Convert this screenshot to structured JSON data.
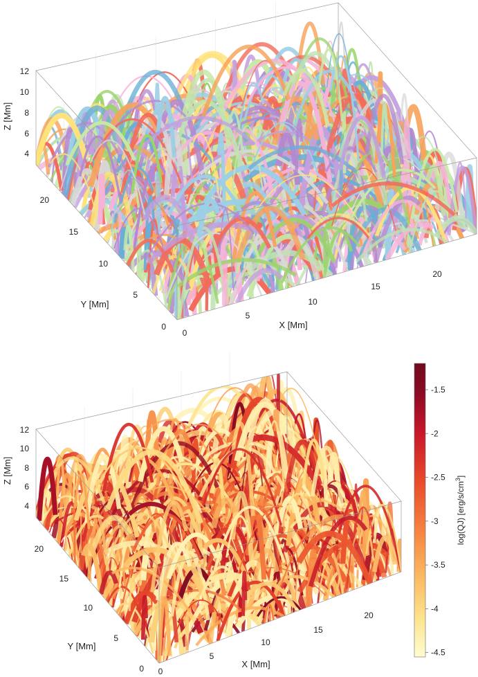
{
  "chart_data": [
    {
      "type": "scatter",
      "panel": "top",
      "description_hidden": false,
      "xlabel": "X [Mm]",
      "ylabel": "Y [Mm]",
      "zlabel": "Z [Mm]",
      "xticks": [
        "0",
        "5",
        "10",
        "15",
        "20"
      ],
      "yticks": [
        "0",
        "5",
        "10",
        "15",
        "20"
      ],
      "zticks": [
        "4",
        "6",
        "8",
        "10",
        "12"
      ],
      "xlim": [
        0,
        24
      ],
      "ylim": [
        0,
        24
      ],
      "zlim": [
        3,
        12
      ],
      "coloring": "categorical",
      "palette": [
        "#f26b5b",
        "#6aaed6",
        "#9bd36b",
        "#b389d0",
        "#f7b3d8",
        "#ffe27a",
        "#bfe3b4",
        "#d9d9d9",
        "#f7a35c",
        "#9ccfe6",
        "#c7e9a6",
        "#c49fde"
      ]
    },
    {
      "type": "scatter",
      "panel": "bottom",
      "xlabel": "X [Mm]",
      "ylabel": "Y [Mm]",
      "zlabel": "Z [Mm]",
      "xticks": [
        "0",
        "5",
        "10",
        "15",
        "20"
      ],
      "yticks": [
        "0",
        "5",
        "10",
        "15",
        "20"
      ],
      "zticks": [
        "4",
        "6",
        "8",
        "10",
        "12"
      ],
      "xlim": [
        0,
        24
      ],
      "ylim": [
        0,
        24
      ],
      "zlim": [
        3,
        12
      ],
      "coloring": "continuous",
      "colorbar": {
        "label": "log(QJ) [erg/s/cm3]",
        "label_main": "log(QJ) [erg/s/cm",
        "label_sup": "3",
        "label_end": "]",
        "ticks": [
          "-1.5",
          "-2",
          "-2.5",
          "-3",
          "-3.5",
          "-4",
          "-4.5"
        ],
        "tick_values": [
          -1.5,
          -2,
          -2.5,
          -3,
          -3.5,
          -4,
          -4.5
        ],
        "range": [
          -4.55,
          -1.2
        ],
        "colormap": [
          "#fffdd0",
          "#fde18a",
          "#fbb45e",
          "#f5803f",
          "#e84a2a",
          "#c9182a",
          "#8b0a24",
          "#700a1e"
        ]
      }
    }
  ]
}
